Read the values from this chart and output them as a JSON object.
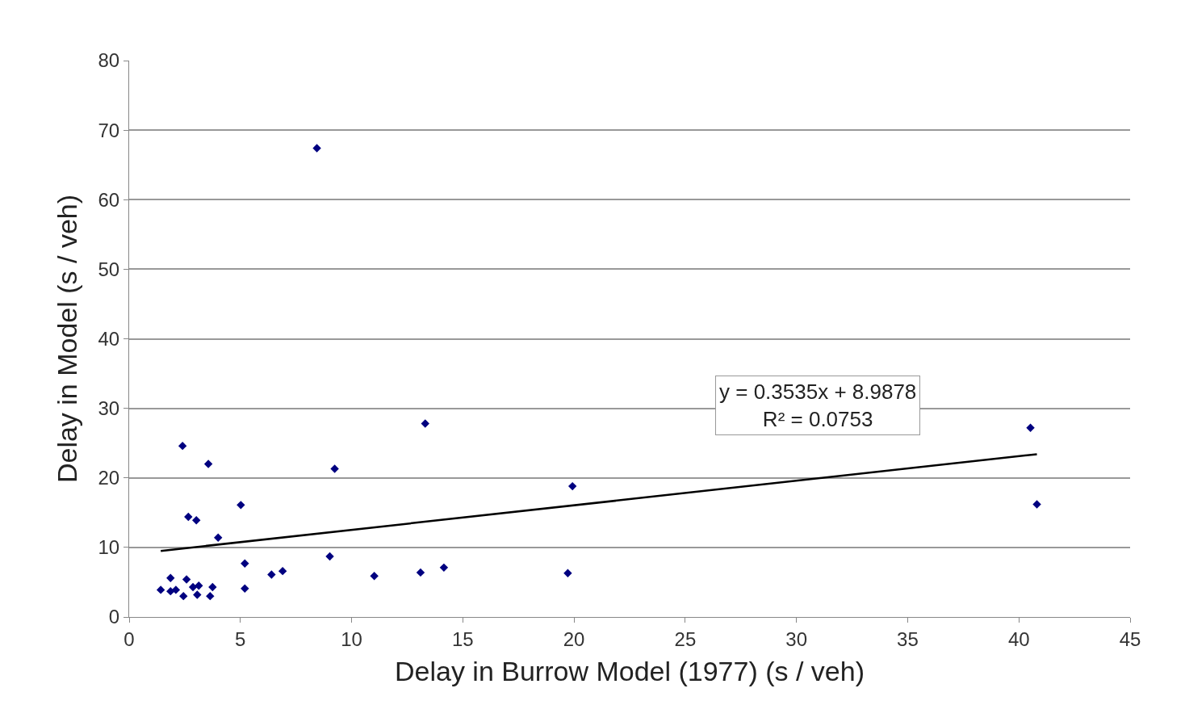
{
  "chart_data": {
    "type": "scatter",
    "xlabel": "Delay in Burrow Model (1977) (s / veh)",
    "ylabel": "Delay in Model (s / veh)",
    "xlim": [
      0,
      45
    ],
    "xticks": [
      0,
      5,
      10,
      15,
      20,
      25,
      30,
      35,
      40,
      45
    ],
    "ylim": [
      0,
      80
    ],
    "yticks": [
      0,
      10,
      20,
      30,
      40,
      50,
      60,
      70,
      80
    ],
    "grid": "y",
    "marker": "diamond",
    "annotations": [
      "y = 0.3535x + 8.9878",
      "R² = 0.0753"
    ],
    "series": [
      {
        "color": "#000080",
        "x": [
          1.42,
          1.86,
          1.86,
          2.1,
          2.4,
          2.44,
          2.58,
          2.66,
          2.87,
          3.02,
          3.13,
          3.06,
          3.56,
          3.64,
          3.75,
          4.0,
          5.02,
          5.2,
          5.2,
          6.4,
          6.9,
          8.44,
          9.02,
          9.24,
          11.02,
          13.1,
          13.31,
          14.15,
          19.72,
          19.93,
          40.52,
          40.81
        ],
        "values": [
          3.9,
          5.6,
          3.7,
          3.9,
          24.6,
          3.0,
          5.4,
          14.4,
          4.3,
          13.9,
          4.5,
          3.2,
          22.0,
          3.0,
          4.3,
          11.4,
          16.1,
          7.7,
          4.1,
          6.1,
          6.6,
          67.4,
          8.7,
          21.3,
          5.9,
          6.4,
          27.8,
          7.1,
          6.3,
          18.8,
          27.2,
          16.2
        ]
      },
      {
        "type": "line",
        "color": "#000000",
        "marker": "none",
        "line_style": "solid",
        "x": [
          1.42,
          40.81
        ],
        "values": [
          9.5,
          23.4
        ]
      }
    ]
  }
}
